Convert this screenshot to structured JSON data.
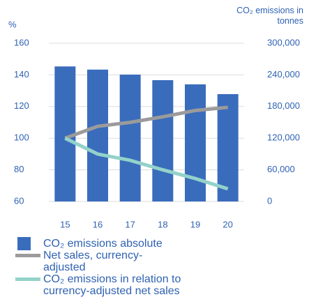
{
  "chart_data": {
    "type": "bar_line",
    "ylabel": "%",
    "y2label": "CO₂ emissions in tonnes",
    "categories": [
      "15",
      "16",
      "17",
      "18",
      "19",
      "20"
    ],
    "series": [
      {
        "name": "CO₂ emissions absolute",
        "type": "bar",
        "axis": "y2",
        "color": "#3a6cbc",
        "values": [
          256000,
          250000,
          240500,
          230000,
          222000,
          203500
        ]
      },
      {
        "name": "Net sales, currency-adjusted",
        "type": "line",
        "axis": "y",
        "color": "#9b9b9b",
        "values": [
          100,
          107.5,
          110,
          113.5,
          117.5,
          119.5
        ]
      },
      {
        "name": "CO₂ emissions in relation to currency-adjusted net sales",
        "type": "line",
        "axis": "y",
        "color": "#93d2ca",
        "values": [
          100,
          90,
          86,
          80,
          74.5,
          68
        ]
      }
    ],
    "ylim": [
      60,
      160
    ],
    "yticks": [
      60,
      80,
      100,
      120,
      140,
      160
    ],
    "y2lim": [
      0,
      300000
    ],
    "y2ticks": [
      0,
      {
        "value": 60000,
        "label": "60,000"
      },
      {
        "value": 120000,
        "label": "120,000"
      },
      {
        "value": 180000,
        "label": "180,000"
      },
      {
        "value": 240000,
        "label": "240,000"
      },
      {
        "value": 300000,
        "label": "300,000"
      }
    ],
    "grid": true
  }
}
